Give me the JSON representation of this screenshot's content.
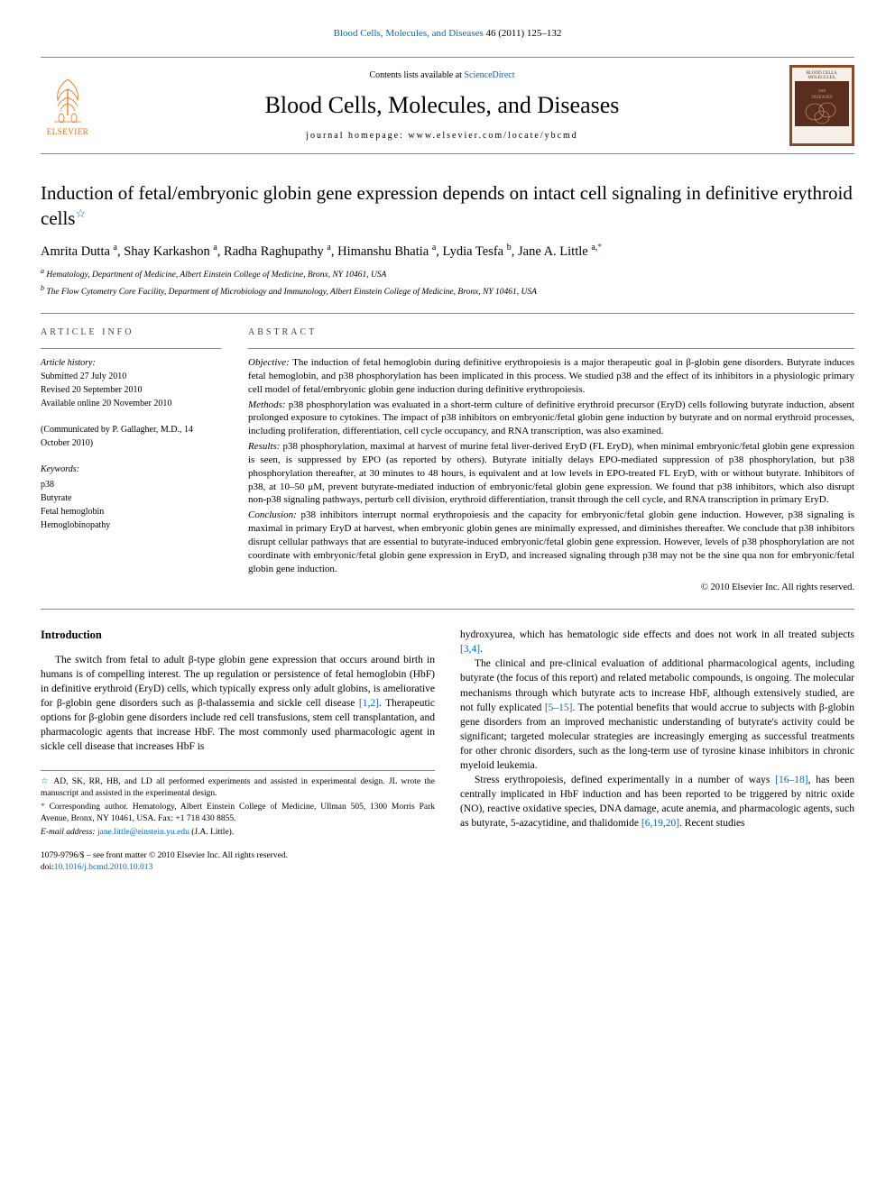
{
  "topLink": {
    "journal": "Blood Cells, Molecules, and Diseases",
    "cite": " 46 (2011) 125–132"
  },
  "masthead": {
    "contentsPrefix": "Contents lists available at ",
    "contentsLink": "ScienceDirect",
    "journalName": "Blood Cells, Molecules, and Diseases",
    "homepageLabel": "journal homepage: ",
    "homepageUrl": "www.elsevier.com/locate/ybcmd",
    "elsevierName": "ELSEVIER",
    "coverTitle": "BLOOD CELLS, MOLECULES, AND DISEASES"
  },
  "article": {
    "title": "Induction of fetal/embryonic globin gene expression depends on intact cell signaling in definitive erythroid cells",
    "starGlyph": "☆",
    "authors": [
      {
        "name": "Amrita Dutta",
        "affil": "a"
      },
      {
        "name": "Shay Karkashon",
        "affil": "a"
      },
      {
        "name": "Radha Raghupathy",
        "affil": "a"
      },
      {
        "name": "Himanshu Bhatia",
        "affil": "a"
      },
      {
        "name": "Lydia Tesfa",
        "affil": "b"
      },
      {
        "name": "Jane A. Little",
        "affil": "a,",
        "corr": true
      }
    ],
    "affiliations": {
      "a": "Hematology, Department of Medicine, Albert Einstein College of Medicine, Bronx, NY 10461, USA",
      "b": "The Flow Cytometry Core Facility, Department of Microbiology and Immunology, Albert Einstein College of Medicine, Bronx, NY 10461, USA"
    }
  },
  "info": {
    "labelInfo": "ARTICLE INFO",
    "labelAbstract": "ABSTRACT",
    "historyTitle": "Article history:",
    "history": [
      "Submitted 27 July 2010",
      "Revised 20 September 2010",
      "Available online 20 November 2010"
    ],
    "communicated": "(Communicated by P. Gallagher, M.D., 14 October 2010)",
    "keywordsTitle": "Keywords:",
    "keywords": [
      "p38",
      "Butyrate",
      "Fetal hemoglobin",
      "Hemoglobinopathy"
    ]
  },
  "abstract": {
    "objective": {
      "label": "Objective:",
      "text": " The induction of fetal hemoglobin during definitive erythropoiesis is a major therapeutic goal in β-globin gene disorders. Butyrate induces fetal hemoglobin, and p38 phosphorylation has been implicated in this process. We studied p38 and the effect of its inhibitors in a physiologic primary cell model of fetal/embryonic globin gene induction during definitive erythropoiesis."
    },
    "methods": {
      "label": "Methods:",
      "text": " p38 phosphorylation was evaluated in a short-term culture of definitive erythroid precursor (EryD) cells following butyrate induction, absent prolonged exposure to cytokines. The impact of p38 inhibitors on embryonic/fetal globin gene induction by butyrate and on normal erythroid processes, including proliferation, differentiation, cell cycle occupancy, and RNA transcription, was also examined."
    },
    "results": {
      "label": "Results:",
      "text": " p38 phosphorylation, maximal at harvest of murine fetal liver-derived EryD (FL EryD), when minimal embryonic/fetal globin gene expression is seen, is suppressed by EPO (as reported by others). Butyrate initially delays EPO-mediated suppression of p38 phosphorylation, but p38 phosphorylation thereafter, at 30 minutes to 48 hours, is equivalent and at low levels in EPO-treated FL EryD, with or without butyrate. Inhibitors of p38, at 10–50 μM, prevent butyrate-mediated induction of embryonic/fetal globin gene expression. We found that p38 inhibitors, which also disrupt non-p38 signaling pathways, perturb cell division, erythroid differentiation, transit through the cell cycle, and RNA transcription in primary EryD."
    },
    "conclusion": {
      "label": "Conclusion:",
      "text": " p38 inhibitors interrupt normal erythropoiesis and the capacity for embryonic/fetal globin gene induction. However, p38 signaling is maximal in primary EryD at harvest, when embryonic globin genes are minimally expressed, and diminishes thereafter. We conclude that p38 inhibitors disrupt cellular pathways that are essential to butyrate-induced embryonic/fetal globin gene expression. However, levels of p38 phosphorylation are not coordinate with embryonic/fetal globin gene expression in EryD, and increased signaling through p38 may not be the sine qua non for embryonic/fetal globin gene induction."
    },
    "copyright": "© 2010 Elsevier Inc. All rights reserved."
  },
  "body": {
    "introHeading": "Introduction",
    "leftParas": [
      "The switch from fetal to adult β-type globin gene expression that occurs around birth in humans is of compelling interest. The up regulation or persistence of fetal hemoglobin (HbF) in definitive erythroid (EryD) cells, which typically express only adult globins, is ameliorative for β-globin gene disorders such as β-thalassemia and sickle cell disease [1,2]. Therapeutic options for β-globin gene disorders include red cell transfusions, stem cell transplantation, and pharmacologic agents that increase HbF. The most commonly used pharmacologic agent in sickle cell disease that increases HbF is"
    ],
    "rightParas": [
      "hydroxyurea, which has hematologic side effects and does not work in all treated subjects [3,4].",
      "The clinical and pre-clinical evaluation of additional pharmacological agents, including butyrate (the focus of this report) and related metabolic compounds, is ongoing. The molecular mechanisms through which butyrate acts to increase HbF, although extensively studied, are not fully explicated [5–15]. The potential benefits that would accrue to subjects with β-globin gene disorders from an improved mechanistic understanding of butyrate's activity could be significant; targeted molecular strategies are increasingly emerging as successful treatments for other chronic disorders, such as the long-term use of tyrosine kinase inhibitors in chronic myeloid leukemia.",
      "Stress erythropoiesis, defined experimentally in a number of ways [16–18], has been centrally implicated in HbF induction and has been reported to be triggered by nitric oxide (NO), reactive oxidative species, DNA damage, acute anemia, and pharmacologic agents, such as butyrate, 5-azacytidine, and thalidomide [6,19,20]. Recent studies"
    ],
    "refs": {
      "r1": "[1,2]",
      "r2": "[3,4]",
      "r3": "[5–15]",
      "r4": "[16–18]",
      "r5": "[6,19,20]"
    }
  },
  "footnotes": {
    "starNote": " AD, SK, RR, HB, and LD all performed experiments and assisted in experimental design. JL wrote the manuscript and assisted in the experimental design.",
    "corrNote": " Corresponding author. Hematology, Albert Einstein College of Medicine, Ullman 505, 1300 Morris Park Avenue, Bronx, NY 10461, USA. Fax: +1 718 430 8855.",
    "emailLabel": "E-mail address: ",
    "email": "jane.little@einstein.yu.edu",
    "emailSuffix": " (J.A. Little)."
  },
  "doi": {
    "front": "1079-9796/$ – see front matter © 2010 Elsevier Inc. All rights reserved.",
    "doi": "doi:10.1016/j.bcmd.2010.10.013"
  },
  "colors": {
    "link": "#0066cc",
    "elsevierOrange": "#ff6600",
    "coverBorder": "#8a4a2a",
    "coverBg": "#5a2e1e",
    "rule": "#888888"
  }
}
